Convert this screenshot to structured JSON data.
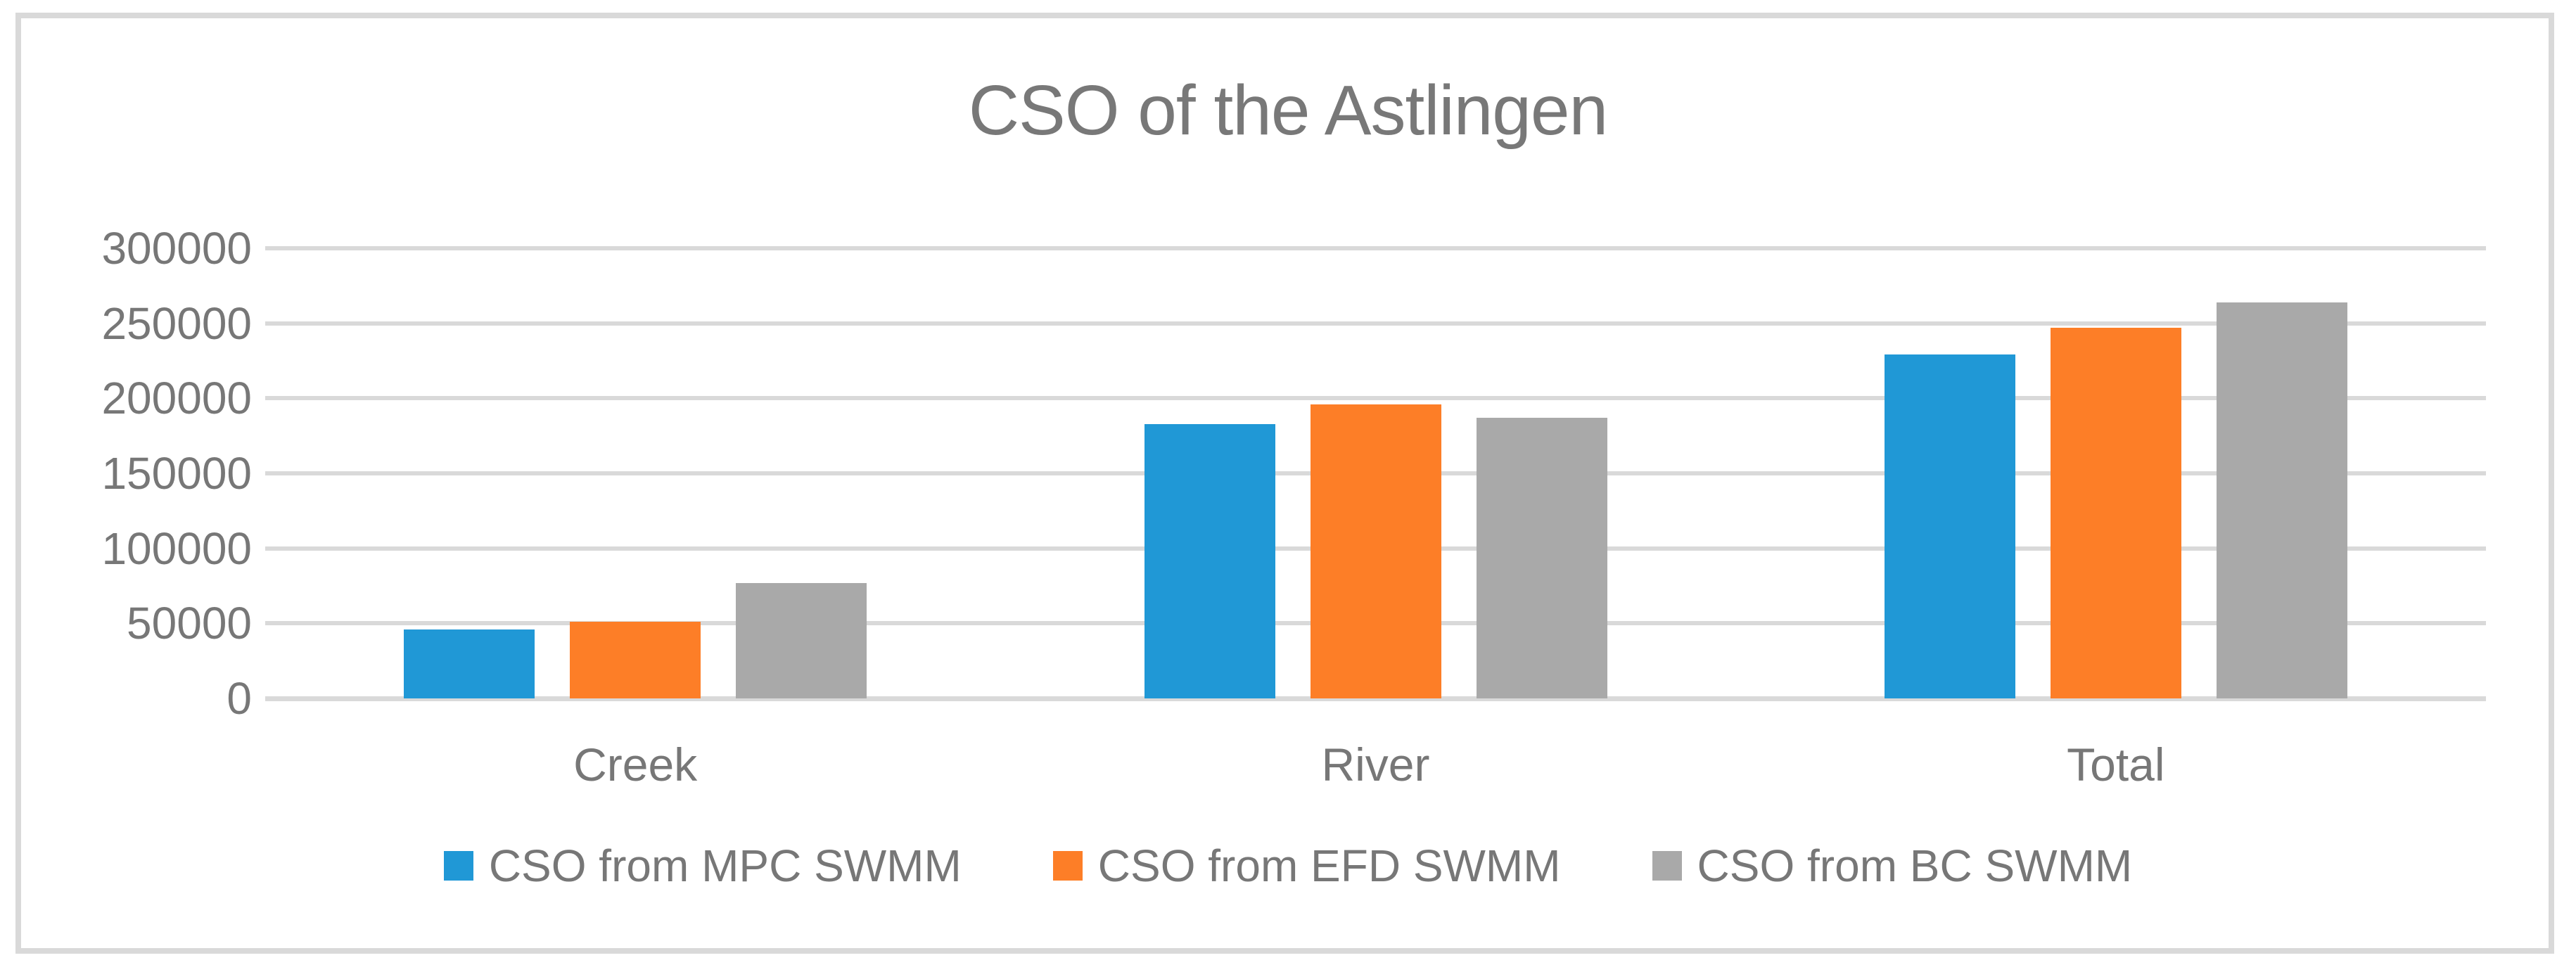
{
  "chart_data": {
    "type": "bar",
    "title": "CSO of the Astlingen",
    "categories": [
      "Creek",
      "River",
      "Total"
    ],
    "series": [
      {
        "name": "CSO from MPC SWMM",
        "color": "#2098D6",
        "values": [
          46000,
          183000,
          229000
        ]
      },
      {
        "name": "CSO from EFD SWMM",
        "color": "#FD7E27",
        "values": [
          51000,
          196000,
          247000
        ]
      },
      {
        "name": "CSO from BC SWMM",
        "color": "#A9A9A9",
        "values": [
          77000,
          187000,
          264000
        ]
      }
    ],
    "xlabel": "",
    "ylabel": "",
    "ylim": [
      0,
      300000
    ],
    "ytick_interval": 50000,
    "ytick_labels": [
      "0",
      "50000",
      "100000",
      "150000",
      "200000",
      "250000",
      "300000"
    ],
    "grid": true,
    "legend_position": "bottom",
    "colors": {
      "gridline": "#D9D9D9",
      "frame_border": "#D9D9D9",
      "axis_text": "#777777",
      "title_text": "#787878",
      "background": "#FFFFFF"
    }
  }
}
